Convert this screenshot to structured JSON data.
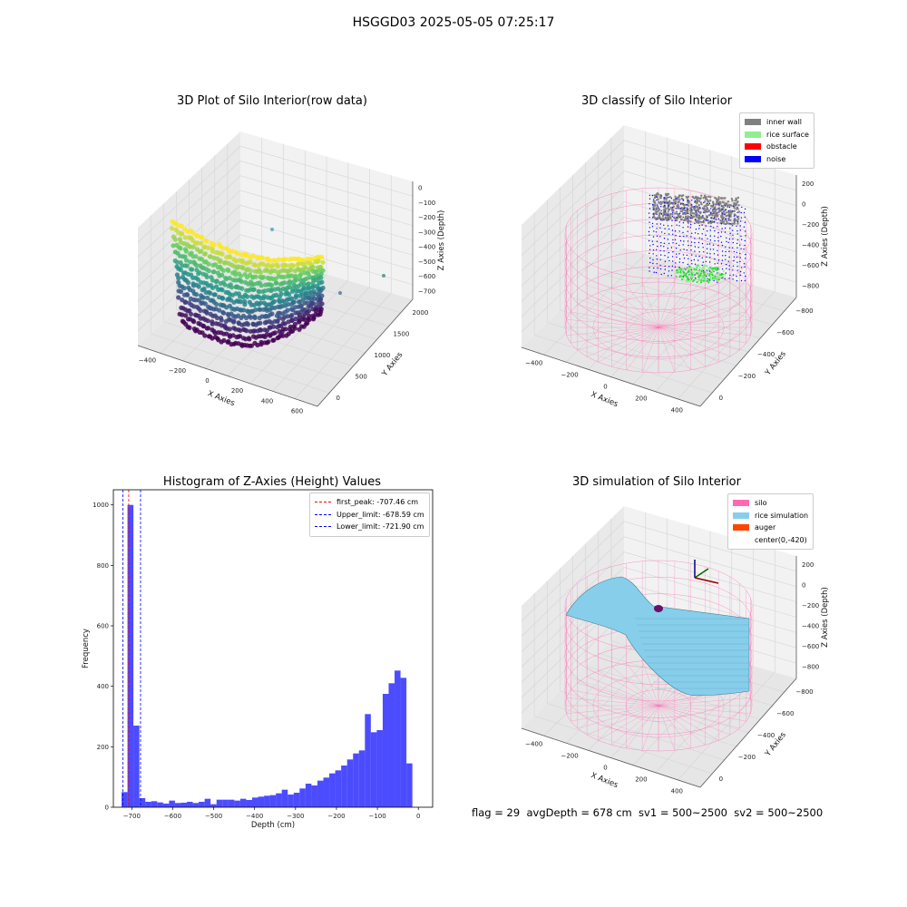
{
  "figure": {
    "suptitle": "HSGGD03 2025-05-05 07:25:17",
    "footer": "flag = 29  avgDepth = 678 cm  sv1 = 500~2500  sv2 = 500~2500"
  },
  "panels": {
    "raw": {
      "title": "3D Plot of Silo Interior(row data)",
      "xlabel": "X Axies",
      "ylabel": "Y Axies",
      "zlabel": "Z Axies (Depth)",
      "xticks": [
        "−400",
        "−200",
        "0",
        "200",
        "400",
        "600"
      ],
      "yticks": [
        "0",
        "500",
        "1000",
        "1500",
        "2000"
      ],
      "zticks": [
        "0",
        "−100",
        "−200",
        "−300",
        "−400",
        "−500",
        "−600",
        "−700"
      ]
    },
    "classify": {
      "title": "3D classify of Silo Interior",
      "xlabel": "X Axies",
      "ylabel": "Y Axies",
      "zlabel": "Z Axies (Depth)",
      "xticks": [
        "−400",
        "−200",
        "0",
        "200",
        "400"
      ],
      "yticks": [
        "0",
        "−200",
        "−400",
        "−600",
        "−800"
      ],
      "zticks": [
        "200",
        "0",
        "−200",
        "−400",
        "−600",
        "−800"
      ],
      "legend": [
        {
          "label": "inner wall",
          "color": "#808080"
        },
        {
          "label": "rice surface",
          "color": "#90ee90"
        },
        {
          "label": "obstacle",
          "color": "#ff0000"
        },
        {
          "label": "noise",
          "color": "#0000ff"
        }
      ]
    },
    "simulation": {
      "title": "3D simulation of Silo Interior",
      "xlabel": "X Axies",
      "ylabel": "Y Axies",
      "zlabel": "Z Axies (Depth)",
      "xticks": [
        "−400",
        "−200",
        "0",
        "200",
        "400"
      ],
      "yticks": [
        "0",
        "−200",
        "−400",
        "−600",
        "−800"
      ],
      "zticks": [
        "200",
        "0",
        "−200",
        "−400",
        "−600",
        "−800"
      ],
      "legend": [
        {
          "label": "silo",
          "color": "#ff69b4"
        },
        {
          "label": "rice simulation",
          "color": "#87ceeb"
        },
        {
          "label": "auger",
          "color": "#ff4500"
        },
        {
          "label": "center(0,-420)",
          "color": "#ffffff"
        }
      ]
    }
  },
  "chart_data": [
    {
      "type": "bar",
      "title": "Histogram of Z-Axies (Height) Values",
      "xlabel": "Depth (cm)",
      "ylabel": "Frequency",
      "xlim": [
        -745,
        35
      ],
      "ylim": [
        0,
        1050
      ],
      "xticks": [
        -700,
        -600,
        -500,
        -400,
        -300,
        -200,
        -100,
        0
      ],
      "yticks": [
        0,
        200,
        400,
        600,
        800,
        1000
      ],
      "bar_color": "#0000ff",
      "bin_start": -725,
      "bin_width": 14.5,
      "values": [
        50,
        1000,
        270,
        30,
        18,
        20,
        16,
        12,
        22,
        14,
        15,
        18,
        14,
        18,
        28,
        10,
        25,
        25,
        25,
        22,
        28,
        24,
        32,
        35,
        38,
        40,
        46,
        58,
        42,
        48,
        62,
        78,
        72,
        88,
        98,
        112,
        122,
        138,
        158,
        178,
        188,
        308,
        248,
        255,
        375,
        410,
        452,
        428,
        145
      ],
      "reference_lines": [
        {
          "label": "first_peak: -707.46 cm",
          "x": -707.46,
          "color": "#ff0000"
        },
        {
          "label": "Upper_limit: -678.59 cm",
          "x": -678.59,
          "color": "#0000ff"
        },
        {
          "label": "Lower_limit: -721.90 cm",
          "x": -721.9,
          "color": "#0000ff"
        }
      ],
      "legend_position": "upper right"
    }
  ]
}
